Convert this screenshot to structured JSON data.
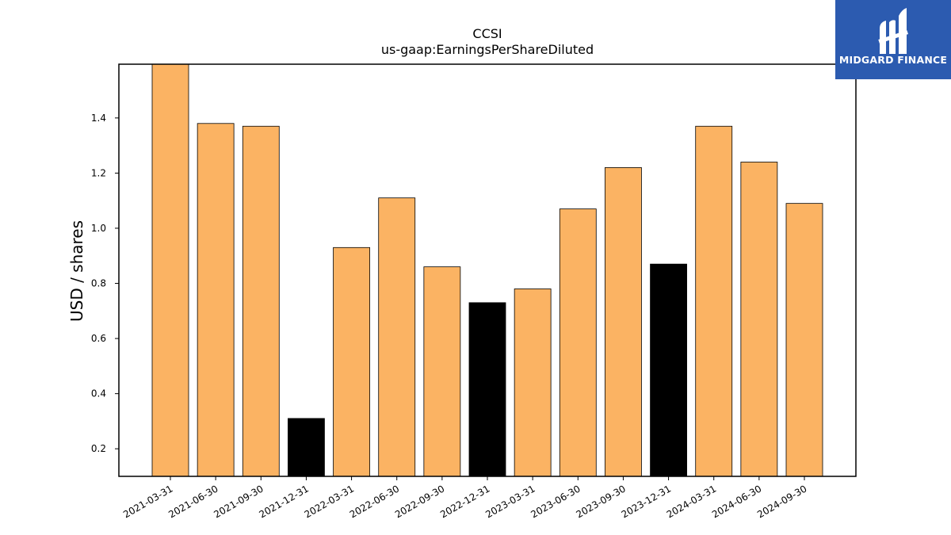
{
  "chart_data": {
    "type": "bar",
    "title": "CCSI",
    "subtitle": "us-gaap:EarningsPerShareDiluted",
    "xlabel": "",
    "ylabel": "USD / shares",
    "categories": [
      "2021-03-31",
      "2021-06-30",
      "2021-09-30",
      "2021-12-31",
      "2022-03-31",
      "2022-06-30",
      "2022-09-30",
      "2022-12-31",
      "2023-03-31",
      "2023-06-30",
      "2023-09-30",
      "2023-12-31",
      "2024-03-31",
      "2024-06-30",
      "2024-09-30"
    ],
    "values": [
      1.62,
      1.38,
      1.37,
      0.31,
      0.93,
      1.11,
      0.86,
      0.73,
      0.78,
      1.07,
      1.22,
      0.87,
      1.37,
      1.24,
      1.09
    ],
    "bar_colors": [
      "#fbb363",
      "#fbb363",
      "#fbb363",
      "#000000",
      "#fbb363",
      "#fbb363",
      "#fbb363",
      "#000000",
      "#fbb363",
      "#fbb363",
      "#fbb363",
      "#000000",
      "#fbb363",
      "#fbb363",
      "#fbb363"
    ],
    "ylim": [
      0.1,
      1.595
    ],
    "yticks": [
      "0.2",
      "0.4",
      "0.6",
      "0.8",
      "1.0",
      "1.2",
      "1.4"
    ],
    "grid": false,
    "legend": "none"
  },
  "logo": {
    "text": "MIDGARD FINANCE",
    "background": "#2c5bb0"
  }
}
